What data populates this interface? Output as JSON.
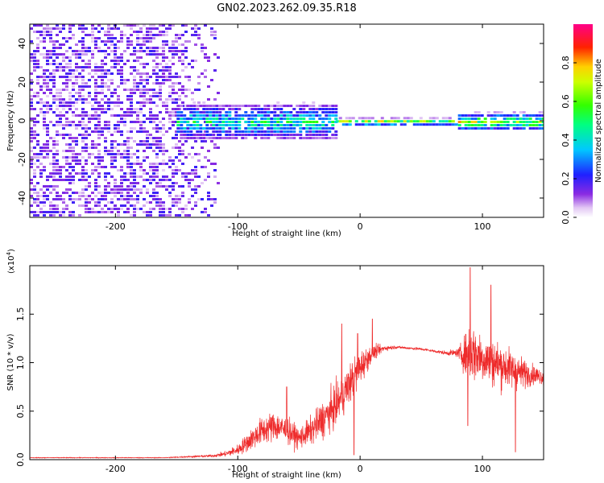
{
  "title": "GN02.2023.262.09.35.R18",
  "colors": {
    "snr_line": "#ee2b2b",
    "axis": "#000000"
  },
  "chart_data": [
    {
      "type": "heatmap",
      "title": "GN02.2023.262.09.35.R18",
      "xlabel": "Height of straight line (km)",
      "ylabel": "Frequency (Hz)",
      "xlim": [
        -270,
        150
      ],
      "ylim": [
        -50,
        50
      ],
      "xticks": [
        -200,
        -100,
        0,
        100
      ],
      "yticks": [
        -40,
        -20,
        0,
        20,
        40
      ],
      "colorbar": {
        "label": "Normalized spectral amplitude",
        "range": [
          0,
          1
        ],
        "ticks": [
          0.0,
          0.2,
          0.4,
          0.6,
          0.8
        ],
        "colormap": "rainbow (white-violet-blue-cyan-green-yellow-red-magenta)"
      },
      "regions": [
        {
          "x_range": [
            -270,
            -115
          ],
          "freq_range": [
            -50,
            50
          ],
          "amplitude": 0.1,
          "description": "broadband low-amplitude noise"
        },
        {
          "x_range": [
            -150,
            -20
          ],
          "freq_range": [
            -10,
            10
          ],
          "amplitude": 0.35,
          "description": "narrowing signal band"
        },
        {
          "x_range": [
            -20,
            80
          ],
          "freq_range": [
            -2,
            2
          ],
          "amplitude": 0.6,
          "description": "narrow band near 0 Hz"
        },
        {
          "x_range": [
            80,
            150
          ],
          "freq_range": [
            -5,
            5
          ],
          "amplitude": 0.5,
          "description": "narrow band near 0 Hz with wiggles"
        }
      ]
    },
    {
      "type": "line",
      "xlabel": "Height of straight line (km)",
      "ylabel": "SNR (10 * v/v)",
      "scale_label": "(x10",
      "scale_exponent": "4",
      "scale_suffix": ")",
      "xlim": [
        -270,
        150
      ],
      "ylim": [
        0,
        2.0
      ],
      "xticks": [
        -200,
        -100,
        0,
        100
      ],
      "yticks": [
        0.0,
        0.5,
        1.0,
        1.5
      ],
      "series": [
        {
          "x": [
            -270,
            -240,
            -200,
            -160,
            -140,
            -120,
            -110,
            -100,
            -90,
            -80,
            -70,
            -60,
            -50,
            -40,
            -30,
            -20,
            -10,
            0,
            10,
            20,
            30,
            40,
            50,
            60,
            70,
            80,
            85,
            90,
            100,
            110,
            120,
            130,
            140,
            150
          ],
          "y": [
            0.02,
            0.02,
            0.02,
            0.02,
            0.03,
            0.04,
            0.06,
            0.1,
            0.2,
            0.3,
            0.35,
            0.3,
            0.22,
            0.3,
            0.42,
            0.55,
            0.75,
            0.95,
            1.1,
            1.15,
            1.16,
            1.15,
            1.14,
            1.12,
            1.1,
            1.1,
            1.08,
            1.12,
            1.05,
            1.0,
            0.95,
            0.9,
            0.88,
            0.85
          ],
          "noise": [
            0.005,
            0.005,
            0.005,
            0.005,
            0.01,
            0.02,
            0.04,
            0.08,
            0.15,
            0.2,
            0.22,
            0.2,
            0.15,
            0.2,
            0.28,
            0.3,
            0.3,
            0.25,
            0.12,
            0.04,
            0.02,
            0.02,
            0.02,
            0.02,
            0.03,
            0.06,
            0.25,
            0.45,
            0.35,
            0.35,
            0.3,
            0.25,
            0.15,
            0.1
          ]
        }
      ],
      "peaks": [
        {
          "x": 90,
          "y": 1.98
        },
        {
          "x": 107,
          "y": 1.8
        },
        {
          "x": -15,
          "y": 1.4
        },
        {
          "x": 10,
          "y": 1.45
        },
        {
          "x": -2,
          "y": 1.3
        },
        {
          "x": -60,
          "y": 0.75
        },
        {
          "x": 88,
          "y": 0.35
        },
        {
          "x": 127,
          "y": 0.08
        },
        {
          "x": -5,
          "y": 0.05
        }
      ]
    }
  ]
}
